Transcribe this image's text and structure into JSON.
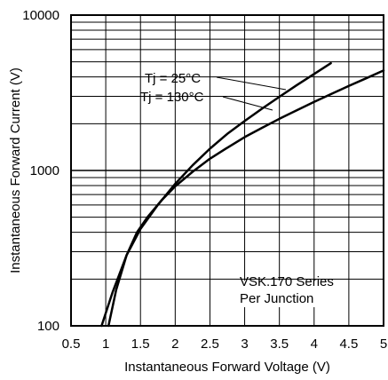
{
  "chart_data": {
    "type": "line",
    "xlabel": "Instantaneous Forward Voltage (V)",
    "ylabel": "Instantaneous Forward Current (V)",
    "xlim": [
      0.5,
      5
    ],
    "ylim": [
      100,
      10000
    ],
    "y_scale": "log",
    "grid": true,
    "x_ticks": [
      "0.5",
      "1",
      "1.5",
      "2",
      "2.5",
      "3",
      "3.5",
      "4",
      "4.5",
      "5"
    ],
    "y_ticks": [
      "100",
      "1000",
      "10000"
    ],
    "series": [
      {
        "name": "Tj = 25°C",
        "x": [
          0.94,
          1.1,
          1.3,
          1.5,
          1.75,
          2.0,
          2.25,
          2.5,
          2.75,
          3.0,
          3.25,
          3.5,
          3.75,
          4.0,
          4.24
        ],
        "y": [
          100,
          165,
          285,
          420,
          600,
          820,
          1080,
          1380,
          1720,
          2080,
          2500,
          2980,
          3540,
          4180,
          4900
        ]
      },
      {
        "name": "Tj = 130°C",
        "x": [
          1.04,
          1.15,
          1.3,
          1.45,
          1.6,
          1.8,
          2.0,
          2.25,
          2.5,
          2.75,
          3.0,
          3.25,
          3.5,
          3.75,
          4.0,
          4.25,
          4.5,
          4.75,
          5.0
        ],
        "y": [
          100,
          170,
          285,
          400,
          500,
          640,
          790,
          980,
          1190,
          1400,
          1640,
          1880,
          2150,
          2440,
          2760,
          3110,
          3500,
          3920,
          4400
        ]
      }
    ],
    "annotations": [
      "VSK.170 Series",
      "Per Junction"
    ]
  },
  "labels": {
    "series_25": "Tj = 25°C",
    "series_130": "Tj = 130°C",
    "note_line1": "VSK.170 Series",
    "note_line2": "Per Junction"
  }
}
